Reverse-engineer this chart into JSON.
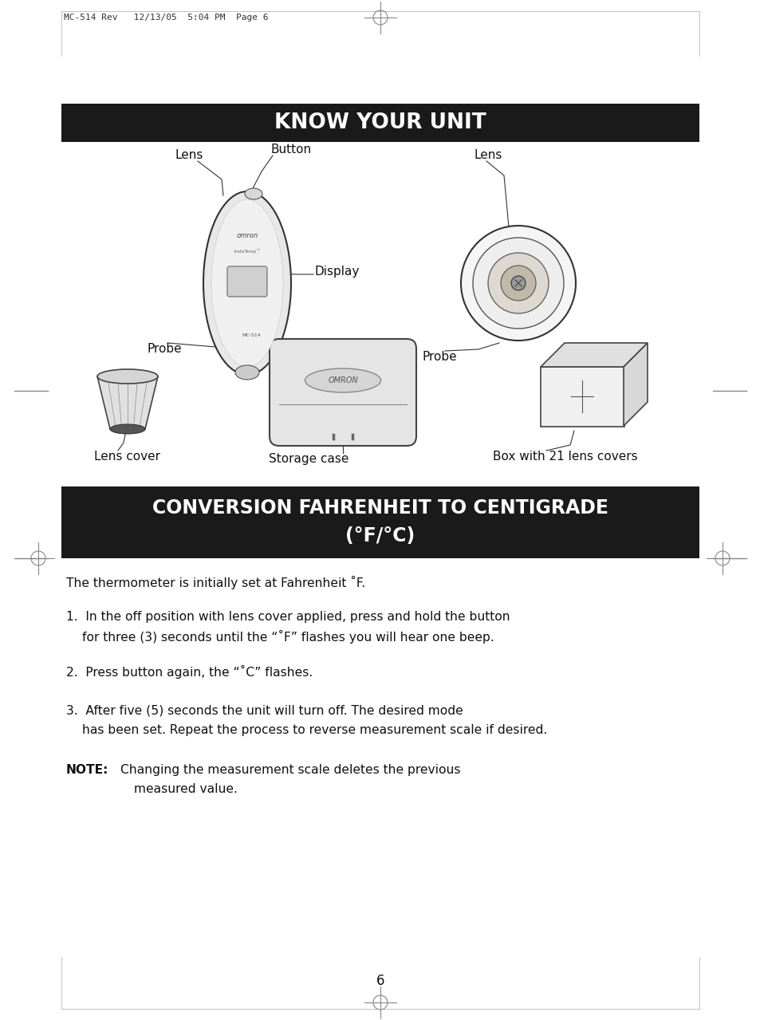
{
  "page_header": "MC-514 Rev   12/13/05  5:04 PM  Page 6",
  "section1_title": "KNOW YOUR UNIT",
  "section2_title_line1": "CONVERSION FAHRENHEIT TO CENTIGRADE",
  "section2_title_line2": "(°F/°C)",
  "header_bg": "#1a1a1a",
  "header_fg": "#ffffff",
  "body_bg": "#ffffff",
  "body_fg": "#111111",
  "labels": {
    "lens_left": "Lens",
    "button": "Button",
    "lens_right": "Lens",
    "display": "Display",
    "probe_left": "Probe",
    "probe_right": "Probe",
    "lens_cover": "Lens cover",
    "storage_case": "Storage case",
    "box_label": "Box with 21 lens covers"
  },
  "paragraph0": "The thermometer is initially set at Fahrenheit ˚F.",
  "item1_line1": "1.  In the off position with lens cover applied, press and hold the button",
  "item1_line2": "     for three (3) seconds until the “˚F” flashes you will hear one beep.",
  "item2": "2.  Press button again, the “˚C” flashes.",
  "item3_line1": "3.  After five (5) seconds the unit will turn off. The desired mode",
  "item3_line2": "     has been set. Repeat the process to reverse measurement scale if desired.",
  "note_bold": "NOTE:",
  "note_text_line1": "  Changing the measurement scale deletes the previous",
  "note_text_line2": "        measured value.",
  "page_number": "6"
}
